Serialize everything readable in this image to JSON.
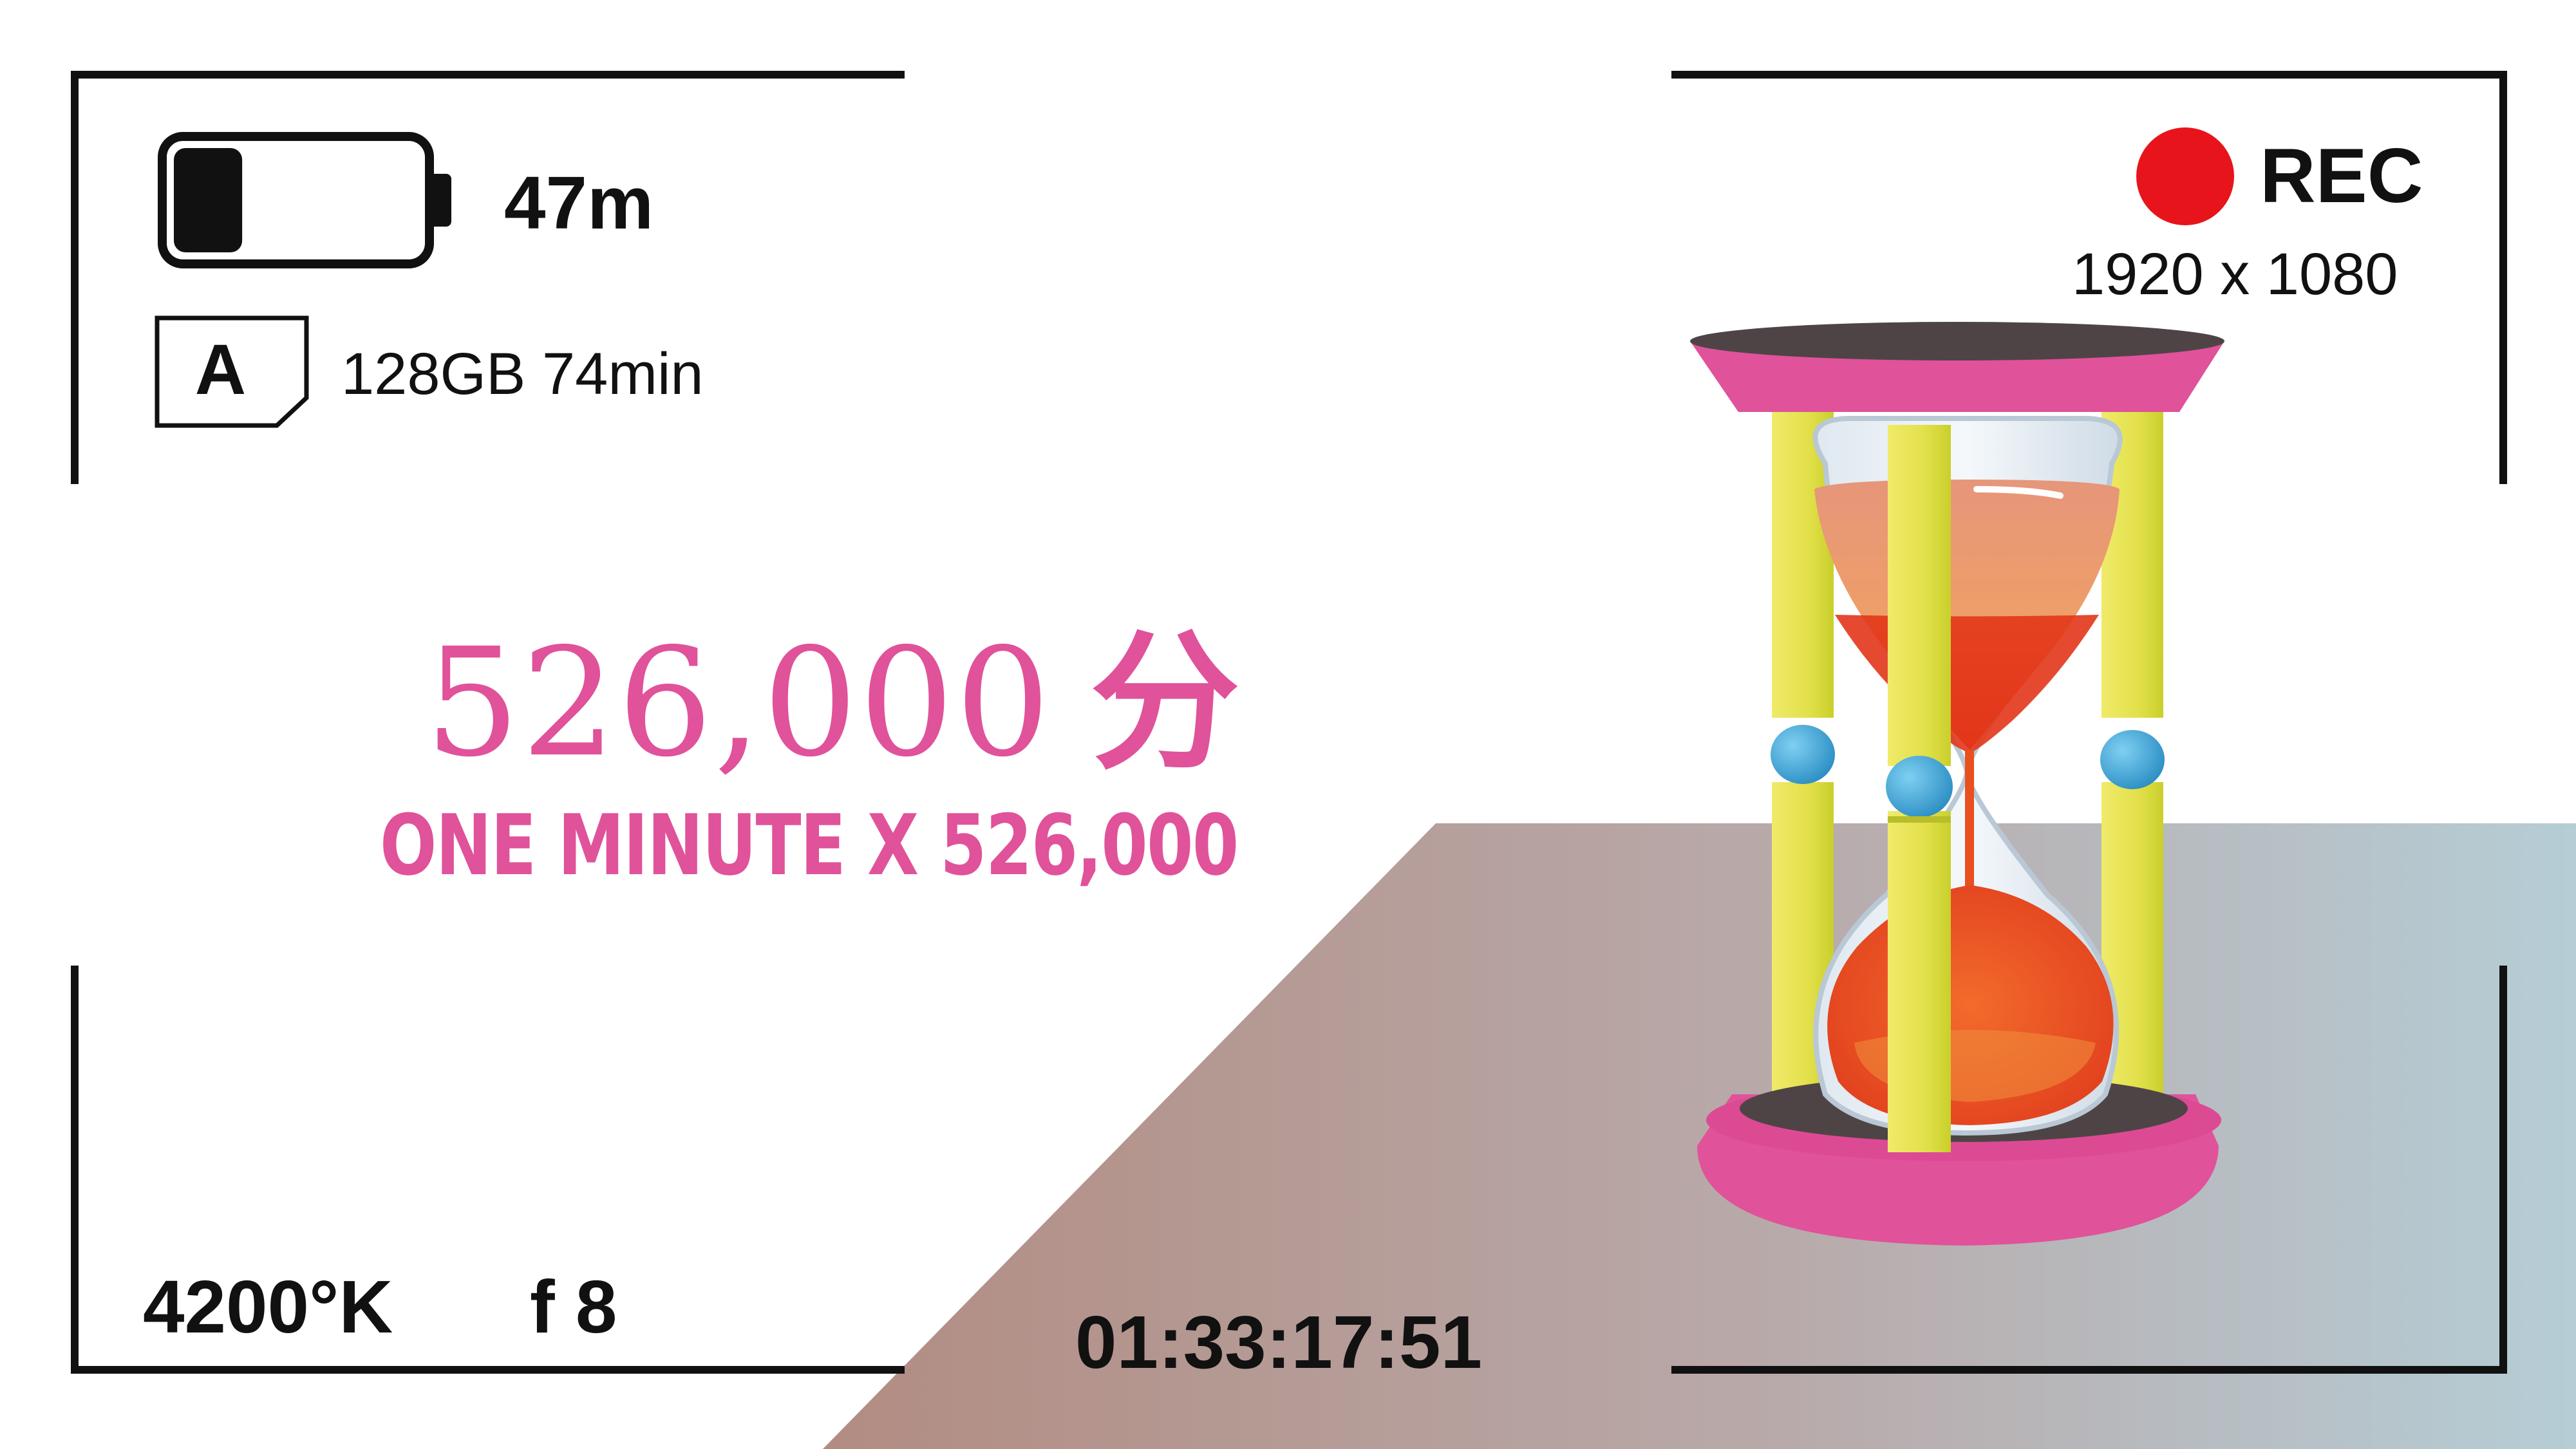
{
  "status": {
    "battery_level": 0.28,
    "battery_time": "47m",
    "card_slot": "A",
    "storage": "128GB 74min",
    "rec_label": "REC",
    "resolution": "1920 x 1080",
    "white_balance": "4200°K",
    "aperture": "f 8",
    "timecode": "01:33:17:51"
  },
  "headline": {
    "number": "526,000",
    "unit": "分",
    "subtitle": "ONE MINUTE X 526,000"
  },
  "colors": {
    "accent_pink": "#e0529a",
    "rec_red": "#e8141b",
    "frame_black": "#111111"
  },
  "icons": {
    "battery": "battery-icon",
    "card": "sd-card-icon",
    "rec": "record-dot-icon",
    "illustration": "hourglass-icon"
  }
}
